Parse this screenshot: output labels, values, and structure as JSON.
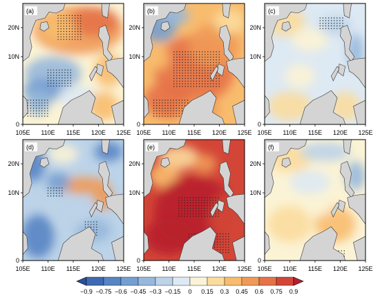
{
  "panels": [
    {
      "id": "a",
      "label": "(a)",
      "pattern": "a"
    },
    {
      "id": "b",
      "label": "(b)",
      "pattern": "b"
    },
    {
      "id": "c",
      "label": "(c)",
      "pattern": "c"
    },
    {
      "id": "d",
      "label": "(d)",
      "pattern": "d"
    },
    {
      "id": "e",
      "label": "(e)",
      "pattern": "e"
    },
    {
      "id": "f",
      "label": "(f)",
      "pattern": "f"
    }
  ],
  "x_ticks": [
    "105E",
    "110E",
    "115E",
    "120E",
    "125E"
  ],
  "y_ticks": [
    "0",
    "10N",
    "20N"
  ],
  "colorbar": {
    "labels": [
      "−0.9",
      "−0.75",
      "−0.6",
      "−0.45",
      "−0.3",
      "−0.15",
      "0",
      "0.15",
      "0.3",
      "0.45",
      "0.6",
      "0.75",
      "0.9"
    ],
    "colors": [
      "#2a4f9c",
      "#3e6ab3",
      "#5684c4",
      "#759fd1",
      "#97b8dc",
      "#bcd3e8",
      "#dde9f3",
      "#fbf3d5",
      "#fbdc9d",
      "#f8bc6e",
      "#f09a57",
      "#e57248",
      "#d34637",
      "#b8202c"
    ]
  },
  "land_color": "#d4d4d4"
}
